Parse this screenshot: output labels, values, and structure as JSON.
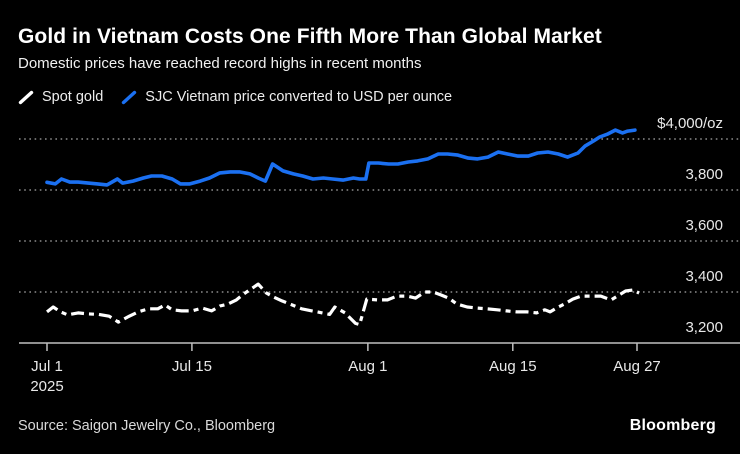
{
  "header": {
    "title": "Gold in Vietnam Costs One Fifth More Than Global Market",
    "subtitle": "Domestic prices have reached record highs in recent months"
  },
  "legend": {
    "items": [
      {
        "label": "Spot gold",
        "color": "#ffffff",
        "line_style": "dashed"
      },
      {
        "label": "SJC Vietnam price converted to USD per ounce",
        "color": "#1b70f1",
        "line_style": "solid"
      }
    ]
  },
  "footer": {
    "source": "Source: Saigon Jewelry Co., Bloomberg",
    "logo": "Bloomberg"
  },
  "colors": {
    "background": "#000000",
    "spot_gold": "#ffffff",
    "sjc_blue": "#1b70f1",
    "gridline": "#8c8c8c",
    "axis": "#bfbfbf",
    "label": "#e8e8e8"
  },
  "chart_data": {
    "type": "line",
    "title": "Gold in Vietnam Costs One Fifth More Than Global Market",
    "subtitle": "Domestic prices have reached record highs in recent months",
    "xlabel": "",
    "ylabel": "USD per ounce",
    "grid": "dotted horizontal gridlines",
    "legend_position": "top-left",
    "ylim": [
      3150,
      4100
    ],
    "y_axis": {
      "baseline_value": 3200,
      "ticks": [
        {
          "label": "$4,000/oz",
          "value": 4000
        },
        {
          "label": "3,800",
          "value": 3800
        },
        {
          "label": "3,600",
          "value": 3600
        },
        {
          "label": "3,400",
          "value": 3400
        },
        {
          "label": "3,200",
          "value": 3200
        }
      ]
    },
    "x_axis": {
      "start": "Jul 1 2025",
      "end": "Aug 27 2025",
      "days_span": 57,
      "ticks": [
        {
          "label": "Jul 1",
          "sublabel": "2025",
          "day": 0
        },
        {
          "label": "Jul 15",
          "day": 14
        },
        {
          "label": "Aug 1",
          "day": 31
        },
        {
          "label": "Aug 15",
          "day": 45
        },
        {
          "label": "Aug 27",
          "day": 57
        }
      ]
    },
    "series": [
      {
        "name": "Spot gold",
        "color": "#ffffff",
        "line_style": "dashed",
        "points": [
          [
            0,
            3322
          ],
          [
            0.6,
            3341
          ],
          [
            1.3,
            3322
          ],
          [
            2,
            3310
          ],
          [
            3,
            3318
          ],
          [
            4,
            3314
          ],
          [
            5,
            3312
          ],
          [
            6,
            3305
          ],
          [
            6.9,
            3282
          ],
          [
            7.8,
            3302
          ],
          [
            8.8,
            3322
          ],
          [
            9.8,
            3334
          ],
          [
            10.7,
            3334
          ],
          [
            11.4,
            3349
          ],
          [
            12.1,
            3330
          ],
          [
            13,
            3326
          ],
          [
            14,
            3326
          ],
          [
            15,
            3337
          ],
          [
            15.9,
            3326
          ],
          [
            16.7,
            3345
          ],
          [
            17.5,
            3353
          ],
          [
            18.3,
            3369
          ],
          [
            19,
            3392
          ],
          [
            20.4,
            3431
          ],
          [
            21.2,
            3396
          ],
          [
            21.9,
            3380
          ],
          [
            22.7,
            3365
          ],
          [
            23.7,
            3349
          ],
          [
            24.6,
            3334
          ],
          [
            25.6,
            3326
          ],
          [
            26.6,
            3318
          ],
          [
            27.3,
            3312
          ],
          [
            27.8,
            3341
          ],
          [
            28.8,
            3318
          ],
          [
            29.8,
            3277
          ],
          [
            30.2,
            3272
          ],
          [
            30.9,
            3372
          ],
          [
            31.9,
            3369
          ],
          [
            32.9,
            3369
          ],
          [
            33.8,
            3384
          ],
          [
            34.8,
            3384
          ],
          [
            35.6,
            3376
          ],
          [
            36.5,
            3400
          ],
          [
            37.3,
            3400
          ],
          [
            38.1,
            3388
          ],
          [
            38.8,
            3376
          ],
          [
            39.6,
            3353
          ],
          [
            40.6,
            3341
          ],
          [
            41.6,
            3337
          ],
          [
            42.5,
            3334
          ],
          [
            43.5,
            3330
          ],
          [
            44.4,
            3326
          ],
          [
            45.4,
            3322
          ],
          [
            46.4,
            3322
          ],
          [
            47.3,
            3318
          ],
          [
            48.1,
            3330
          ],
          [
            48.6,
            3322
          ],
          [
            49.4,
            3341
          ],
          [
            50,
            3353
          ],
          [
            50.8,
            3372
          ],
          [
            51.6,
            3384
          ],
          [
            52.6,
            3384
          ],
          [
            53.5,
            3384
          ],
          [
            54.5,
            3369
          ],
          [
            55.1,
            3384
          ],
          [
            55.9,
            3404
          ],
          [
            56.6,
            3408
          ],
          [
            57.2,
            3396
          ]
        ]
      },
      {
        "name": "SJC Vietnam price converted to USD per ounce",
        "color": "#1b70f1",
        "line_style": "solid",
        "points": [
          [
            0,
            3830
          ],
          [
            0.8,
            3824
          ],
          [
            1.4,
            3843
          ],
          [
            2.2,
            3831
          ],
          [
            3,
            3831
          ],
          [
            4,
            3827
          ],
          [
            4.9,
            3824
          ],
          [
            5.8,
            3820
          ],
          [
            6.8,
            3843
          ],
          [
            7.3,
            3827
          ],
          [
            8.3,
            3835
          ],
          [
            9.3,
            3847
          ],
          [
            10.1,
            3855
          ],
          [
            11.1,
            3855
          ],
          [
            12.1,
            3843
          ],
          [
            12.9,
            3824
          ],
          [
            13.8,
            3824
          ],
          [
            14.8,
            3835
          ],
          [
            15.7,
            3847
          ],
          [
            16.7,
            3867
          ],
          [
            17.7,
            3871
          ],
          [
            18.6,
            3871
          ],
          [
            19.6,
            3863
          ],
          [
            20.4,
            3847
          ],
          [
            21.1,
            3835
          ],
          [
            21.8,
            3902
          ],
          [
            22.8,
            3875
          ],
          [
            23.8,
            3863
          ],
          [
            24.7,
            3855
          ],
          [
            25.7,
            3843
          ],
          [
            26.7,
            3847
          ],
          [
            27.6,
            3843
          ],
          [
            28.6,
            3839
          ],
          [
            29.6,
            3847
          ],
          [
            30.2,
            3843
          ],
          [
            30.8,
            3843
          ],
          [
            31.1,
            3906
          ],
          [
            32,
            3906
          ],
          [
            33,
            3902
          ],
          [
            33.9,
            3902
          ],
          [
            34.9,
            3910
          ],
          [
            35.8,
            3914
          ],
          [
            36.8,
            3922
          ],
          [
            37.8,
            3941
          ],
          [
            38.7,
            3941
          ],
          [
            39.7,
            3937
          ],
          [
            40.7,
            3925
          ],
          [
            41.6,
            3922
          ],
          [
            42.6,
            3929
          ],
          [
            43.6,
            3949
          ],
          [
            44.5,
            3941
          ],
          [
            45.5,
            3933
          ],
          [
            46.5,
            3933
          ],
          [
            47.4,
            3945
          ],
          [
            48.4,
            3949
          ],
          [
            49.4,
            3941
          ],
          [
            50.3,
            3929
          ],
          [
            51.3,
            3945
          ],
          [
            52,
            3973
          ],
          [
            52.8,
            3992
          ],
          [
            53.4,
            4008
          ],
          [
            54.2,
            4020
          ],
          [
            54.9,
            4035
          ],
          [
            55.6,
            4024
          ],
          [
            56.1,
            4031
          ],
          [
            56.8,
            4035
          ]
        ]
      }
    ]
  }
}
